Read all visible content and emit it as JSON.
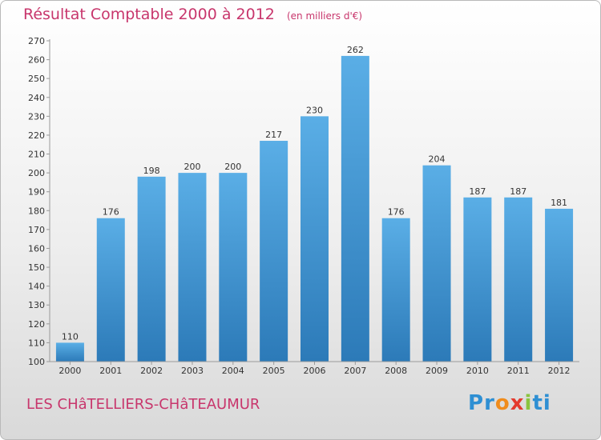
{
  "chart_data": {
    "type": "bar",
    "title": "Résultat Comptable 2000 à 2012",
    "subtitle": "(en milliers d'€)",
    "categories": [
      "2000",
      "2001",
      "2002",
      "2003",
      "2004",
      "2005",
      "2006",
      "2007",
      "2008",
      "2009",
      "2010",
      "2011",
      "2012"
    ],
    "values": [
      110,
      176,
      198,
      200,
      200,
      217,
      230,
      262,
      176,
      204,
      187,
      187,
      181
    ],
    "ylim": [
      100,
      270
    ],
    "ytick_step": 10,
    "xlabel": "",
    "ylabel": "",
    "grid": false,
    "colors": {
      "bar_top": "#5aaee6",
      "bar_bottom": "#2c7ab8",
      "accent": "#c8366c"
    }
  },
  "footer": {
    "location": "LES CHâTELLIERS-CHâTEAUMUR"
  },
  "brand": {
    "letters": [
      "P",
      "r",
      "o",
      "x",
      "i",
      "t",
      "i"
    ],
    "colors": [
      "#2e8fd3",
      "#2e8fd3",
      "#f08c1c",
      "#e43a2e",
      "#8ac43f",
      "#2e8fd3",
      "#2e8fd3"
    ]
  }
}
